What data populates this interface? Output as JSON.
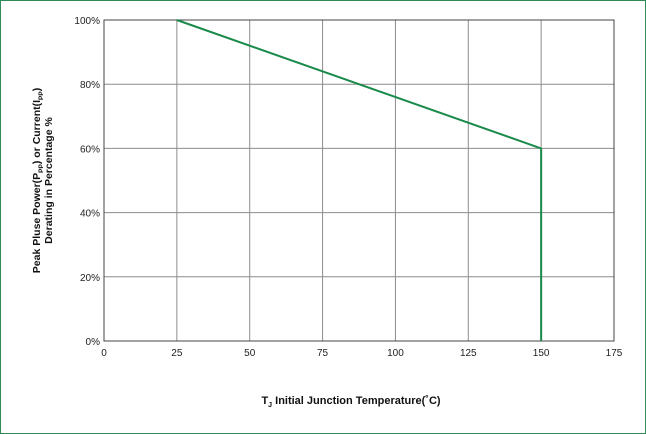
{
  "chart_data": {
    "type": "line",
    "series": [
      {
        "x": [
          25,
          150,
          150
        ],
        "y": [
          100,
          60,
          0
        ],
        "color": "#1a8a4a"
      }
    ],
    "xlim": [
      0,
      175
    ],
    "ylim": [
      0,
      100
    ],
    "x_ticks": [
      0,
      25,
      50,
      75,
      100,
      125,
      150,
      175
    ],
    "y_ticks": [
      0,
      20,
      40,
      60,
      80,
      100
    ],
    "x_tick_labels": [
      "0",
      "25",
      "50",
      "75",
      "100",
      "125",
      "150",
      "175"
    ],
    "y_tick_labels": [
      "0%",
      "20%",
      "40%",
      "60%",
      "80%",
      "100%"
    ],
    "xlabel": {
      "prefix": "T",
      "prefix_sub": "J",
      "text": " Initial Junction Temperature(˚C)"
    },
    "ylabel": {
      "line1_a": "Peak Pluse Power(P",
      "line1_sub1": "PP",
      "line1_b": ") or Current(I",
      "line1_sub2": "PP",
      "line1_c": ")",
      "line2": "Derating in Percentage %"
    },
    "grid": true,
    "frame_color": "#2e8b57",
    "grid_color": "#8c8c8c"
  }
}
